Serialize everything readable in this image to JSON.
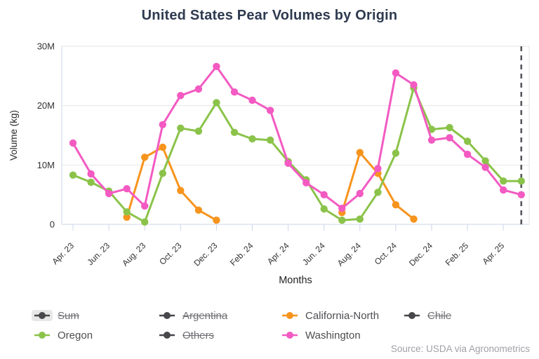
{
  "title": "United States Pear Volumes by Origin",
  "source": "Source: USDA via Agronometrics",
  "chart_data": {
    "type": "line",
    "title": "United States Pear Volumes by Origin",
    "xlabel": "Months",
    "ylabel": "Volume (kg)",
    "y_unit": "millions of kg",
    "ylim": [
      0,
      30
    ],
    "yticks": [
      {
        "v": 0,
        "label": "0"
      },
      {
        "v": 10,
        "label": "10M"
      },
      {
        "v": 20,
        "label": "20M"
      },
      {
        "v": 30,
        "label": "30M"
      }
    ],
    "x": [
      "Apr. 23",
      "May 23",
      "Jun. 23",
      "Jul. 23",
      "Aug. 23",
      "Sep. 23",
      "Oct. 23",
      "Nov. 23",
      "Dec. 23",
      "Jan. 24",
      "Feb. 24",
      "Mar. 24",
      "Apr. 24",
      "May 24",
      "Jun. 24",
      "Jul. 24",
      "Aug. 24",
      "Sep. 24",
      "Oct. 24",
      "Nov. 24",
      "Dec. 24",
      "Jan. 25",
      "Feb. 25",
      "Mar. 25",
      "Apr. 25",
      "May 25"
    ],
    "xtick_indices": [
      0,
      2,
      4,
      6,
      8,
      10,
      12,
      14,
      16,
      18,
      20,
      22,
      24
    ],
    "grid": "horizontal",
    "series": [
      {
        "name": "California-North",
        "color": "#F7941E",
        "values": [
          null,
          null,
          null,
          1.2,
          11.3,
          13.0,
          5.7,
          2.4,
          0.7,
          null,
          null,
          null,
          null,
          null,
          null,
          2.0,
          12.1,
          8.6,
          3.3,
          0.9,
          null,
          null,
          null,
          null,
          null,
          null
        ]
      },
      {
        "name": "Oregon",
        "color": "#8BC34A",
        "values": [
          8.3,
          7.1,
          5.6,
          2.1,
          0.4,
          8.6,
          16.2,
          15.7,
          20.5,
          15.5,
          14.4,
          14.2,
          10.6,
          7.5,
          2.6,
          0.7,
          0.9,
          5.4,
          12.0,
          23.0,
          16.0,
          16.3,
          14.0,
          10.7,
          7.3,
          7.3
        ]
      },
      {
        "name": "Washington",
        "color": "#F35AC2",
        "values": [
          13.7,
          8.5,
          5.2,
          6.0,
          3.1,
          16.8,
          21.7,
          22.8,
          26.6,
          22.3,
          20.9,
          19.2,
          10.3,
          7.0,
          5.0,
          2.7,
          5.2,
          9.4,
          25.5,
          23.5,
          14.2,
          14.6,
          11.8,
          9.6,
          5.8,
          5.0
        ]
      }
    ],
    "annotations": [
      {
        "type": "vline",
        "x_index": 25,
        "style": "dashed",
        "color": "#55585d"
      }
    ],
    "legend": {
      "position": "bottom-left",
      "disabled_color": "#48484c",
      "items": [
        {
          "label": "Sum",
          "disabled": true,
          "highlighted": true
        },
        {
          "label": "Argentina",
          "disabled": true,
          "highlighted": false
        },
        {
          "label": "California-North",
          "disabled": false,
          "highlighted": false,
          "color": "#F7941E"
        },
        {
          "label": "Chile",
          "disabled": true,
          "highlighted": false
        },
        {
          "label": "Oregon",
          "disabled": false,
          "highlighted": false,
          "color": "#8BC34A"
        },
        {
          "label": "Others",
          "disabled": true,
          "highlighted": false
        },
        {
          "label": "Washington",
          "disabled": false,
          "highlighted": false,
          "color": "#F35AC2"
        }
      ]
    }
  }
}
